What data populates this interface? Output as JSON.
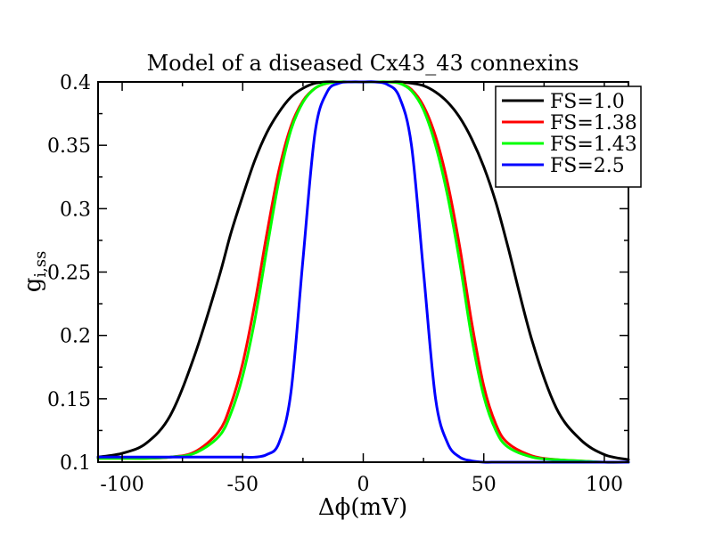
{
  "chart_data": {
    "type": "line",
    "title": "Model of a diseased Cx43_43 connexins",
    "xlabel": "Δϕ(mV)",
    "ylabel_main": "g",
    "ylabel_sub": "i,ss",
    "xlim": [
      -110,
      110
    ],
    "ylim": [
      0.1,
      0.4
    ],
    "x_ticks": [
      -100,
      -50,
      0,
      50,
      100
    ],
    "x_tick_labels": [
      "-100",
      "-50",
      "0",
      "50",
      "100"
    ],
    "y_ticks": [
      0.1,
      0.15,
      0.2,
      0.25,
      0.3,
      0.35,
      0.4
    ],
    "y_tick_labels": [
      "0.1",
      "0.15",
      "0.2",
      "0.25",
      "0.3",
      "0.35",
      "0.4"
    ],
    "grid": false,
    "legend_position": "top-right",
    "x": [
      -110,
      -100,
      -90,
      -80,
      -70,
      -60,
      -55,
      -50,
      -45,
      -40,
      -35,
      -30,
      -25,
      -20,
      -15,
      -10,
      -5,
      0,
      5,
      10,
      15,
      20,
      25,
      30,
      35,
      40,
      45,
      50,
      55,
      60,
      70,
      80,
      90,
      100,
      110
    ],
    "series": [
      {
        "name": "FS=1.0",
        "color": "#000000",
        "values": [
          0.104,
          0.107,
          0.115,
          0.137,
          0.184,
          0.245,
          0.28,
          0.31,
          0.338,
          0.36,
          0.376,
          0.388,
          0.395,
          0.399,
          0.4,
          0.4,
          0.4,
          0.4,
          0.4,
          0.4,
          0.4,
          0.399,
          0.397,
          0.392,
          0.384,
          0.372,
          0.355,
          0.333,
          0.305,
          0.27,
          0.196,
          0.143,
          0.118,
          0.106,
          0.102
        ]
      },
      {
        "name": "FS=1.38",
        "color": "#ff0000",
        "values": [
          0.103,
          0.103,
          0.103,
          0.104,
          0.108,
          0.124,
          0.145,
          0.178,
          0.225,
          0.28,
          0.33,
          0.365,
          0.385,
          0.395,
          0.399,
          0.4,
          0.4,
          0.4,
          0.4,
          0.4,
          0.399,
          0.394,
          0.381,
          0.357,
          0.32,
          0.27,
          0.21,
          0.16,
          0.13,
          0.115,
          0.105,
          0.102,
          0.101,
          0.1,
          0.1
        ]
      },
      {
        "name": "FS=1.43",
        "color": "#00ff00",
        "values": [
          0.103,
          0.103,
          0.103,
          0.104,
          0.107,
          0.12,
          0.138,
          0.168,
          0.212,
          0.268,
          0.322,
          0.362,
          0.384,
          0.395,
          0.399,
          0.4,
          0.4,
          0.4,
          0.4,
          0.4,
          0.399,
          0.393,
          0.378,
          0.35,
          0.31,
          0.258,
          0.198,
          0.152,
          0.125,
          0.112,
          0.104,
          0.102,
          0.101,
          0.1,
          0.1
        ]
      },
      {
        "name": "FS=2.5",
        "color": "#0000ff",
        "values": [
          0.104,
          0.104,
          0.104,
          0.104,
          0.104,
          0.104,
          0.104,
          0.104,
          0.104,
          0.106,
          0.115,
          0.155,
          0.26,
          0.36,
          0.392,
          0.399,
          0.4,
          0.4,
          0.4,
          0.398,
          0.388,
          0.35,
          0.25,
          0.15,
          0.115,
          0.104,
          0.101,
          0.1,
          0.1,
          0.1,
          0.1,
          0.1,
          0.1,
          0.1,
          0.1
        ]
      }
    ]
  }
}
